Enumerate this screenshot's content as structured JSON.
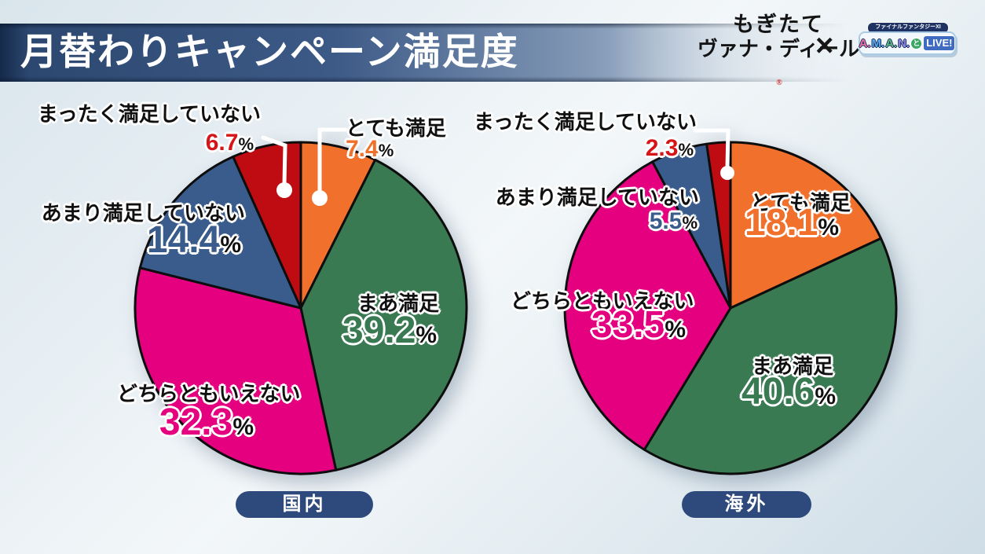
{
  "header": {
    "title": "月替わりキャンペーン満足度",
    "brand": {
      "mogitate_line1": "もぎたて",
      "mogitate_line2": "ヴァナ・ディール",
      "registered_mark": "®",
      "cross_mark": "×",
      "ff_banner": "ファイナルファンタジーXI",
      "aman_letters": [
        "A.",
        "M.",
        "A.",
        "N."
      ],
      "aman_to": "と",
      "aman_live": "LIVE!"
    }
  },
  "percent_sign": "%",
  "chart_data": [
    {
      "type": "pie",
      "group_label": "国内",
      "categories": [
        "とても満足",
        "まあ満足",
        "どちらともいえない",
        "あまり満足していない",
        "まったく満足していない"
      ],
      "values": [
        7.4,
        39.2,
        32.3,
        14.4,
        6.7
      ],
      "value_labels": [
        "7.4",
        "39.2",
        "32.3",
        "14.4",
        "6.7"
      ],
      "colors": [
        "#f0702c",
        "#3a7a52",
        "#e4007f",
        "#3a5c8c",
        "#bf0c12"
      ],
      "start_angle_deg": 0,
      "direction": "clockwise",
      "stroke_color": "#0d0d0d"
    },
    {
      "type": "pie",
      "group_label": "海外",
      "categories": [
        "とても満足",
        "まあ満足",
        "どちらともいえない",
        "あまり満足していない",
        "まったく満足していない"
      ],
      "values": [
        18.1,
        40.6,
        33.5,
        5.5,
        2.3
      ],
      "value_labels": [
        "18.1",
        "40.6",
        "33.5",
        "5.5",
        "2.3"
      ],
      "colors": [
        "#f0702c",
        "#3a7a52",
        "#e4007f",
        "#3a5c8c",
        "#bf0c12"
      ],
      "start_angle_deg": 0,
      "direction": "clockwise",
      "stroke_color": "#0d0d0d"
    }
  ]
}
